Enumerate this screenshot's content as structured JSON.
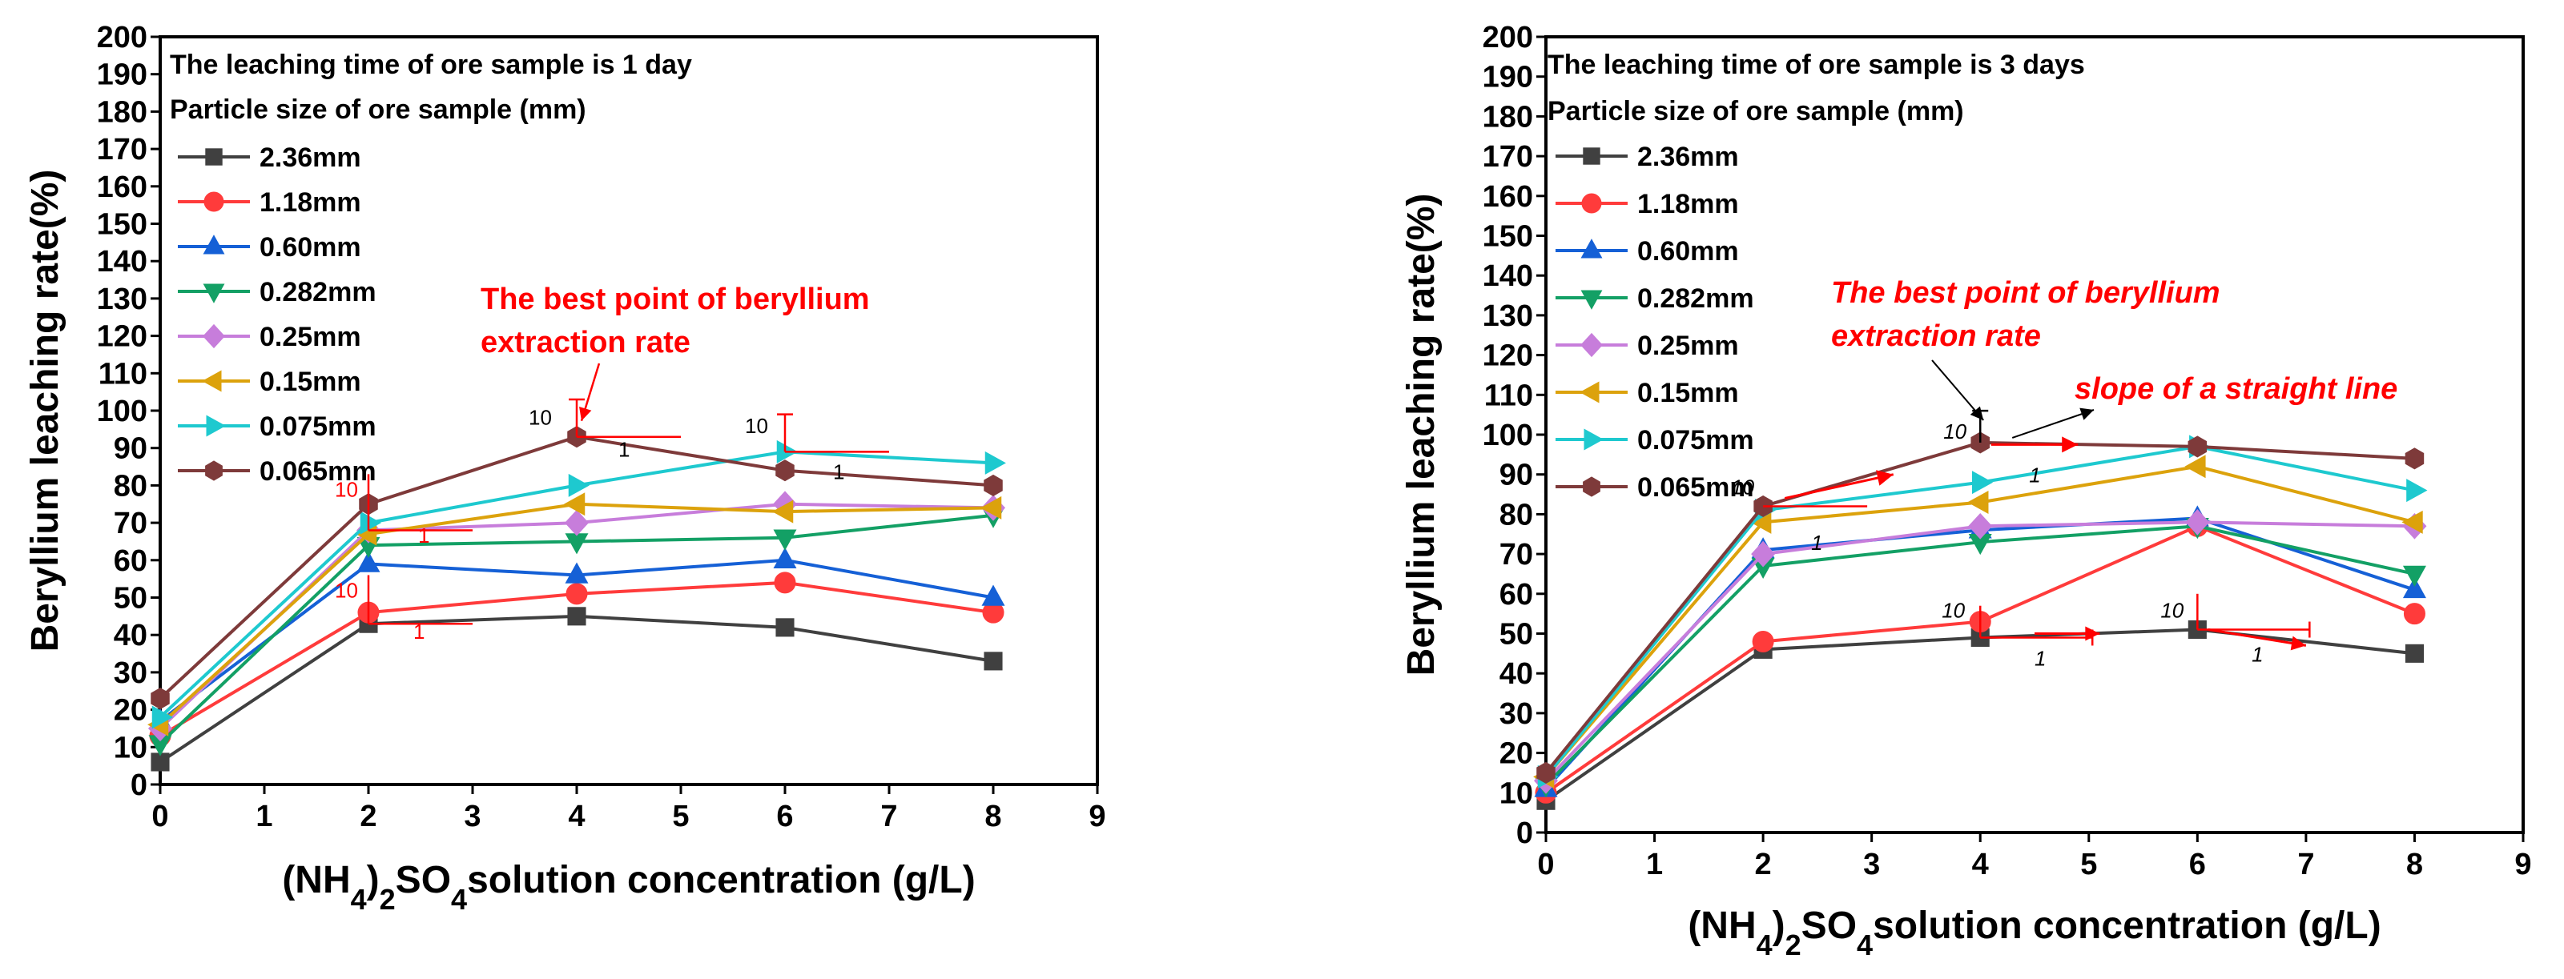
{
  "chart_data": [
    {
      "type": "line",
      "title": "The leaching time of ore sample is 1 day",
      "legend_title": "Particle size of ore sample (mm)",
      "xlabel": "(NH4)2SO4solution concentration (g/L)",
      "xlabel_parts": [
        "(NH",
        "4",
        ")",
        "2",
        "SO",
        "4",
        "solution concentration (g/L)"
      ],
      "ylabel": "Beryllium leaching rate(%)",
      "xlim": [
        0,
        9
      ],
      "ylim": [
        0,
        200
      ],
      "xticks": [
        "0",
        "1",
        "2",
        "3",
        "4",
        "5",
        "6",
        "7",
        "8",
        "9"
      ],
      "yticks": [
        "0",
        "10",
        "20",
        "30",
        "40",
        "50",
        "60",
        "70",
        "80",
        "90",
        "100",
        "110",
        "120",
        "130",
        "140",
        "150",
        "160",
        "170",
        "180",
        "190",
        "200"
      ],
      "x": [
        0,
        2,
        4,
        6,
        8
      ],
      "series": [
        {
          "name": "2.36mm",
          "color": "#404040",
          "marker": "square",
          "values": [
            6,
            43,
            45,
            42,
            33
          ]
        },
        {
          "name": "1.18mm",
          "color": "#ff3b3b",
          "marker": "circle",
          "values": [
            13,
            46,
            51,
            54,
            46
          ]
        },
        {
          "name": "0.60mm",
          "color": "#1560d6",
          "marker": "triangle-up",
          "values": [
            17,
            59,
            56,
            60,
            50
          ]
        },
        {
          "name": "0.282mm",
          "color": "#13a065",
          "marker": "triangle-down",
          "values": [
            11,
            64,
            65,
            66,
            72
          ]
        },
        {
          "name": "0.25mm",
          "color": "#c77ddb",
          "marker": "diamond",
          "values": [
            15,
            68,
            70,
            75,
            74
          ]
        },
        {
          "name": "0.15mm",
          "color": "#dca20c",
          "marker": "triangle-left",
          "values": [
            16,
            67,
            75,
            73,
            74
          ]
        },
        {
          "name": "0.075mm",
          "color": "#1ec9cf",
          "marker": "triangle-right",
          "values": [
            18,
            70,
            80,
            89,
            86
          ]
        },
        {
          "name": "0.065mm",
          "color": "#7e3a3a",
          "marker": "hexagon",
          "values": [
            23,
            75,
            93,
            84,
            80
          ]
        }
      ],
      "annotations": [
        {
          "text": "The best point of beryllium",
          "color": "#ff0000"
        },
        {
          "text": "extraction rate",
          "color": "#ff0000"
        },
        {
          "text": "10"
        },
        {
          "text": "1"
        },
        {
          "text": "10"
        },
        {
          "text": "1"
        },
        {
          "text": "10"
        },
        {
          "text": "1"
        },
        {
          "text": "10"
        },
        {
          "text": "1"
        }
      ]
    },
    {
      "type": "line",
      "title": "The leaching time of ore sample is 3 days",
      "legend_title": "Particle size of ore sample (mm)",
      "xlabel": "(NH4)2SO4solution concentration (g/L)",
      "xlabel_parts": [
        "(NH",
        "4",
        ")",
        "2",
        "SO",
        "4",
        "solution concentration (g/L)"
      ],
      "ylabel": "Beryllium leaching rate(%)",
      "xlim": [
        0,
        9
      ],
      "ylim": [
        0,
        200
      ],
      "xticks": [
        "0",
        "1",
        "2",
        "3",
        "4",
        "5",
        "6",
        "7",
        "8",
        "9"
      ],
      "yticks": [
        "0",
        "10",
        "20",
        "30",
        "40",
        "50",
        "60",
        "70",
        "80",
        "90",
        "100",
        "110",
        "120",
        "130",
        "140",
        "150",
        "160",
        "170",
        "180",
        "190",
        "200"
      ],
      "x": [
        0,
        2,
        4,
        6,
        8
      ],
      "series": [
        {
          "name": "2.36mm",
          "color": "#404040",
          "marker": "square",
          "values": [
            8,
            46,
            49,
            51,
            45
          ]
        },
        {
          "name": "1.18mm",
          "color": "#ff3b3b",
          "marker": "circle",
          "values": [
            10,
            48,
            53,
            77,
            55
          ]
        },
        {
          "name": "0.60mm",
          "color": "#1560d6",
          "marker": "triangle-up",
          "values": [
            11,
            71,
            76,
            79,
            61
          ]
        },
        {
          "name": "0.282mm",
          "color": "#13a065",
          "marker": "triangle-down",
          "values": [
            12,
            67,
            73,
            77,
            65
          ]
        },
        {
          "name": "0.25mm",
          "color": "#c77ddb",
          "marker": "diamond",
          "values": [
            13,
            70,
            77,
            78,
            77
          ]
        },
        {
          "name": "0.15mm",
          "color": "#dca20c",
          "marker": "triangle-left",
          "values": [
            14,
            78,
            83,
            92,
            78
          ]
        },
        {
          "name": "0.075mm",
          "color": "#1ec9cf",
          "marker": "triangle-right",
          "values": [
            14,
            81,
            88,
            97,
            86
          ]
        },
        {
          "name": "0.065mm",
          "color": "#7e3a3a",
          "marker": "hexagon",
          "values": [
            15,
            82,
            98,
            97,
            94
          ]
        }
      ],
      "annotations": [
        {
          "text": "The best point of beryllium",
          "color": "#ff0000"
        },
        {
          "text": "extraction rate",
          "color": "#ff0000"
        },
        {
          "text": "slope of a straight line",
          "color": "#ff0000"
        },
        {
          "text": "10"
        },
        {
          "text": "1"
        },
        {
          "text": "10"
        },
        {
          "text": "1"
        },
        {
          "text": "10"
        },
        {
          "text": "1"
        },
        {
          "text": "10"
        },
        {
          "text": "1"
        }
      ]
    }
  ]
}
